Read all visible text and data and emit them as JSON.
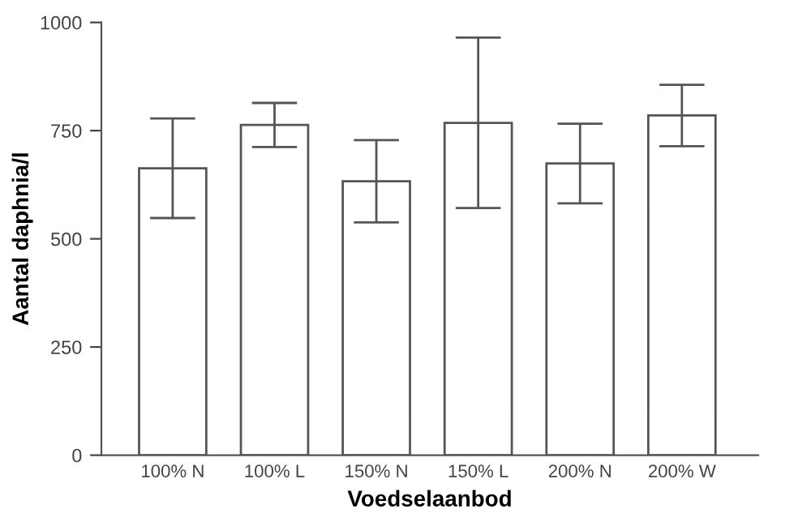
{
  "chart_data": {
    "type": "bar",
    "xlabel": "Voedselaanbod",
    "ylabel": "Aantal daphnia/l",
    "categories": [
      "100% N",
      "100% L",
      "150% N",
      "150% L",
      "200% N",
      "200% W"
    ],
    "values": [
      663,
      763,
      633,
      768,
      674,
      785
    ],
    "errors": [
      115,
      51,
      95,
      197,
      92,
      71
    ],
    "color": "#ffffff",
    "ylim": [
      0,
      1000
    ],
    "yticks": [
      0,
      250,
      500,
      750,
      1000
    ],
    "grid": false
  }
}
